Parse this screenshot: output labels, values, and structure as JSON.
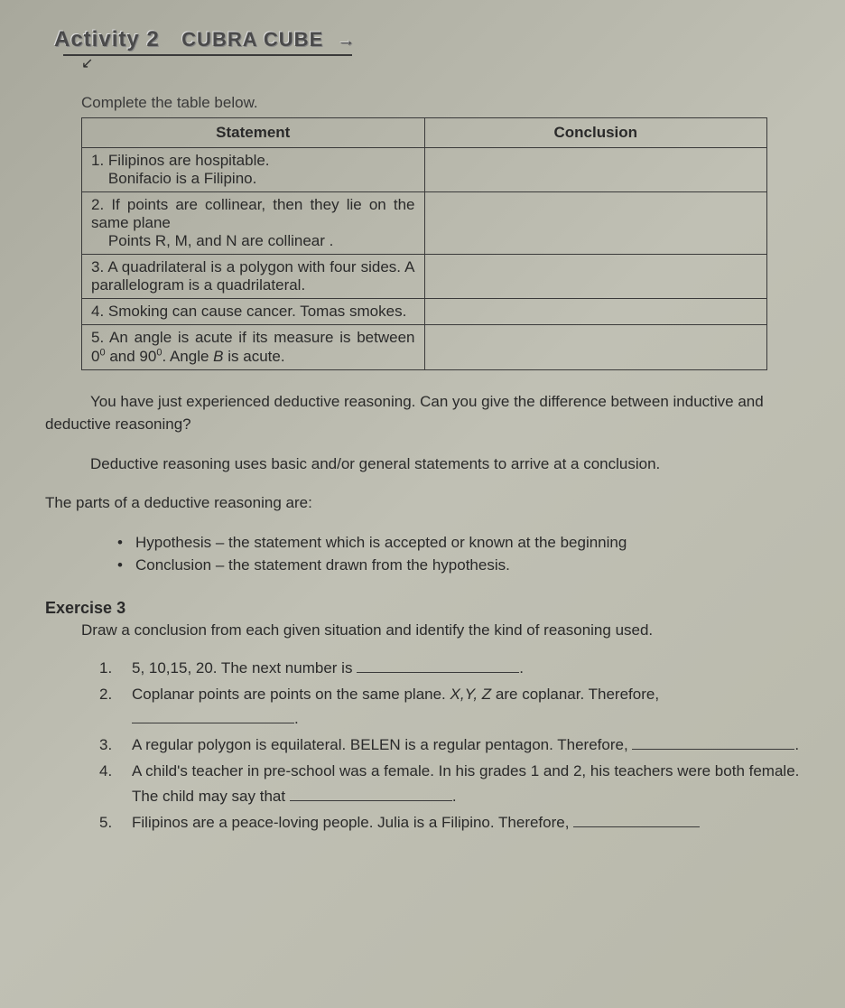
{
  "header": {
    "activity_label": "Activity 2",
    "subtitle": "CUBRA CUBE"
  },
  "table_section": {
    "instruction": "Complete the table below.",
    "columns": [
      "Statement",
      "Conclusion"
    ],
    "rows": [
      {
        "num": "1.",
        "statement_lines": [
          "Filipinos are hospitable.",
          "Bonifacio is a Filipino."
        ],
        "conclusion": ""
      },
      {
        "num": "2.",
        "statement_lines": [
          "If points are collinear, then they lie on the same plane",
          "Points R, M, and N are collinear ."
        ],
        "conclusion": ""
      },
      {
        "num": "3.",
        "statement_lines": [
          "A quadrilateral is a polygon with four sides. A parallelogram is a quadrilateral."
        ],
        "conclusion": ""
      },
      {
        "num": "4.",
        "statement_lines": [
          "Smoking can cause cancer. Tomas smokes."
        ],
        "conclusion": ""
      },
      {
        "num": "5.",
        "statement_html": "An angle is acute if its measure is between 0<span class='sup'>0</span> and 90<span class='sup'>0</span>. Angle <span class='italic'>B</span> is acute.",
        "conclusion": ""
      }
    ]
  },
  "body": {
    "para1": "You have just experienced deductive reasoning. Can you give the difference between inductive and deductive reasoning?",
    "para2": "Deductive reasoning uses basic and/or general statements to arrive at a conclusion.",
    "parts_intro": "The parts of a deductive reasoning are:",
    "parts": [
      "Hypothesis – the statement which is accepted or known at the beginning",
      "Conclusion – the statement drawn from the hypothesis."
    ]
  },
  "exercise": {
    "title": "Exercise 3",
    "instruction": "Draw a conclusion from each given situation and identify  the kind of reasoning used.",
    "items": [
      {
        "num": "1.",
        "text_before": "5, 10,15, 20. The next number is ",
        "text_after": "."
      },
      {
        "num": "2.",
        "text_before_html": "Coplanar points are points on the same plane. <span class='italic'>X,Y, Z</span> are coplanar. Therefore, ",
        "text_after": "."
      },
      {
        "num": "3.",
        "text_before": "A regular polygon is equilateral. BELEN is a regular pentagon. Therefore, ",
        "text_after": "."
      },
      {
        "num": "4.",
        "text_before": "A child's teacher in pre-school was a female. In his grades 1 and 2, his teachers were both female. The child may say that ",
        "text_after": "."
      },
      {
        "num": "5.",
        "text_before": "Filipinos are a peace-loving people. Julia is a Filipino. Therefore, ",
        "text_after": ""
      }
    ]
  },
  "styling": {
    "background_gradient": [
      "#a8a89c",
      "#c0c0b4",
      "#b8b8aa"
    ],
    "text_color": "#2a2a2a",
    "border_color": "#3a3a3a",
    "body_fontsize": 17,
    "header_fontsize": 24
  }
}
